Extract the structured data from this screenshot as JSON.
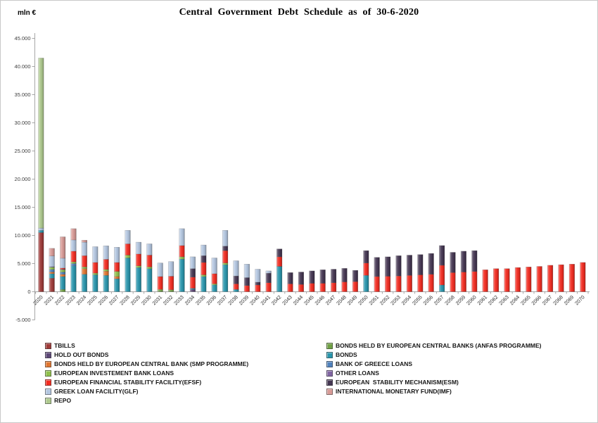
{
  "window": {
    "title": "Central Government Debt Schedule as of 30-6-2020",
    "unit_label": "mln €"
  },
  "chart_data": {
    "type": "bar",
    "stacked": true,
    "title": "Central Government Debt Schedule as of 30-6-2020",
    "ylabel": "mln €",
    "xlabel": "",
    "ylim": [
      -5000,
      45000
    ],
    "y_tick_step": 5000,
    "y_tick_values": [
      45000,
      40000,
      35000,
      30000,
      25000,
      20000,
      15000,
      10000,
      5000,
      0,
      -5000
    ],
    "y_tick_labels": [
      "45.000",
      "40.000",
      "35.000",
      "30.000",
      "25.000",
      "20.000",
      "15.000",
      "10.000",
      "5.000",
      "0",
      "-5.000"
    ],
    "grid": false,
    "x_tick_rotation": 45,
    "legend_position": "bottom-left",
    "categories": [
      2020,
      2021,
      2022,
      2023,
      2024,
      2025,
      2026,
      2027,
      2028,
      2029,
      2030,
      2031,
      2032,
      2033,
      2034,
      2035,
      2036,
      2037,
      2038,
      2039,
      2040,
      2041,
      2042,
      2043,
      2044,
      2045,
      2046,
      2047,
      2048,
      2049,
      2050,
      2051,
      2052,
      2053,
      2054,
      2055,
      2056,
      2057,
      2058,
      2059,
      2060,
      2061,
      2062,
      2063,
      2064,
      2065,
      2066,
      2067,
      2068,
      2069,
      2070
    ],
    "series": [
      {
        "key": "tbills",
        "name": "TBILLS",
        "color": "#9E3A38",
        "values": [
          10500,
          2400,
          0,
          0,
          0,
          0,
          0,
          0,
          0,
          0,
          0,
          0,
          0,
          0,
          0,
          0,
          0,
          0,
          0,
          0,
          0,
          0,
          0,
          0,
          0,
          0,
          0,
          0,
          0,
          0,
          0,
          0,
          0,
          0,
          0,
          0,
          0,
          0,
          0,
          0,
          0,
          0,
          0,
          0,
          0,
          0,
          0,
          0,
          0,
          0,
          0
        ]
      },
      {
        "key": "anfas",
        "name": "BONDS HELD BY EUROPEAN CENTRAL BANKS (ANFAS PROGRAMME)",
        "color": "#70A144",
        "values": [
          0,
          0,
          400,
          0,
          0,
          0,
          0,
          0,
          0,
          0,
          0,
          200,
          200,
          0,
          0,
          0,
          0,
          0,
          0,
          0,
          0,
          0,
          0,
          0,
          0,
          0,
          0,
          0,
          0,
          0,
          0,
          0,
          0,
          0,
          0,
          0,
          0,
          0,
          0,
          0,
          0,
          0,
          0,
          0,
          0,
          0,
          0,
          0,
          0,
          0,
          0
        ]
      },
      {
        "key": "holdout",
        "name": "HOLD OUT BONDS",
        "color": "#5C4776",
        "values": [
          0,
          0,
          0,
          0,
          0,
          0,
          0,
          0,
          0,
          0,
          0,
          0,
          0,
          0,
          400,
          0,
          0,
          0,
          0,
          0,
          0,
          0,
          0,
          0,
          0,
          0,
          0,
          0,
          0,
          0,
          0,
          0,
          0,
          0,
          0,
          0,
          0,
          0,
          0,
          0,
          0,
          0,
          0,
          0,
          0,
          0,
          0,
          0,
          0,
          0,
          0
        ]
      },
      {
        "key": "bonds",
        "name": "BONDS",
        "color": "#2895AC",
        "values": [
          400,
          800,
          2300,
          4600,
          3100,
          3000,
          2900,
          2300,
          6000,
          4300,
          4100,
          0,
          0,
          5800,
          200,
          2700,
          1200,
          4800,
          400,
          0,
          0,
          0,
          4500,
          0,
          0,
          0,
          0,
          0,
          0,
          0,
          2900,
          0,
          0,
          0,
          0,
          0,
          0,
          1200,
          0,
          0,
          0,
          0,
          0,
          0,
          0,
          0,
          0,
          0,
          0,
          0,
          0
        ]
      },
      {
        "key": "smp",
        "name": "BONDS HELD BY EUROPEAN CENTRAL BANK (SMP PROGRAMME)",
        "color": "#E0752F",
        "values": [
          0,
          300,
          400,
          0,
          1000,
          0,
          750,
          400,
          0,
          0,
          0,
          0,
          0,
          0,
          0,
          0,
          0,
          0,
          0,
          0,
          0,
          0,
          0,
          0,
          0,
          0,
          0,
          0,
          0,
          0,
          0,
          0,
          0,
          0,
          0,
          0,
          0,
          0,
          0,
          0,
          0,
          0,
          0,
          0,
          0,
          0,
          0,
          0,
          0,
          0,
          0
        ]
      },
      {
        "key": "bog",
        "name": "BANK OF GREECE LOANS",
        "color": "#4F81BD",
        "values": [
          0,
          450,
          400,
          400,
          0,
          0,
          0,
          0,
          0,
          0,
          0,
          0,
          0,
          0,
          0,
          0,
          0,
          0,
          0,
          0,
          0,
          0,
          0,
          0,
          0,
          0,
          0,
          0,
          0,
          0,
          0,
          0,
          0,
          0,
          0,
          0,
          0,
          0,
          0,
          0,
          0,
          0,
          0,
          0,
          0,
          0,
          0,
          0,
          0,
          0,
          0
        ]
      },
      {
        "key": "eib",
        "name": "EUROPEAN INVESTEMENT BANK LOANS",
        "color": "#8FC04C",
        "values": [
          0,
          400,
          400,
          300,
          300,
          300,
          300,
          900,
          500,
          300,
          300,
          200,
          150,
          400,
          0,
          300,
          200,
          300,
          0,
          0,
          0,
          0,
          0,
          0,
          0,
          0,
          0,
          0,
          0,
          0,
          0,
          0,
          0,
          0,
          0,
          0,
          0,
          0,
          0,
          0,
          0,
          0,
          0,
          0,
          0,
          0,
          0,
          0,
          0,
          0,
          0
        ]
      },
      {
        "key": "other",
        "name": "OTHER LOANS",
        "color": "#8064A2",
        "values": [
          0,
          100,
          100,
          0,
          0,
          0,
          0,
          0,
          0,
          0,
          0,
          0,
          0,
          0,
          0,
          0,
          0,
          0,
          0,
          0,
          0,
          0,
          0,
          0,
          0,
          0,
          0,
          0,
          0,
          0,
          0,
          0,
          0,
          0,
          0,
          0,
          0,
          0,
          0,
          0,
          0,
          0,
          0,
          0,
          0,
          0,
          0,
          0,
          0,
          0,
          0
        ]
      },
      {
        "key": "efsf",
        "name": "EUROPEAN FINANCIAL STABILITY FACILITY(EFSF)",
        "color": "#F32B20",
        "values": [
          0,
          0,
          200,
          1900,
          2000,
          1900,
          1800,
          1600,
          2000,
          2100,
          2100,
          2300,
          2400,
          2000,
          2000,
          2200,
          1800,
          2200,
          1000,
          1100,
          1200,
          1600,
          1700,
          1400,
          1300,
          1500,
          1500,
          1600,
          1750,
          1800,
          2200,
          2700,
          2750,
          2800,
          2900,
          3000,
          3100,
          3500,
          3400,
          3500,
          3600,
          3900,
          4100,
          4100,
          4300,
          4400,
          4500,
          4700,
          4800,
          4900,
          5200
        ]
      },
      {
        "key": "esm",
        "name": "EUROPEAN  STABILITY MECHANISM(ESM)",
        "color": "#443652",
        "values": [
          0,
          0,
          0,
          0,
          0,
          0,
          0,
          0,
          0,
          0,
          0,
          0,
          0,
          0,
          1500,
          1200,
          0,
          800,
          1400,
          1400,
          500,
          1700,
          1400,
          2000,
          2200,
          2200,
          2400,
          2400,
          2400,
          2000,
          2200,
          3400,
          3450,
          3600,
          3600,
          3600,
          3700,
          3500,
          3600,
          3700,
          3700,
          0,
          0,
          0,
          0,
          0,
          0,
          0,
          0,
          0,
          0
        ]
      },
      {
        "key": "glf",
        "name": "GREEK LOAN FACILITY(GLF)",
        "color": "#B3C6E0",
        "values": [
          400,
          1900,
          1750,
          2000,
          2400,
          2800,
          2400,
          2700,
          2400,
          2100,
          2000,
          2400,
          2600,
          3000,
          2100,
          1900,
          2800,
          2800,
          2700,
          2400,
          2300,
          400,
          0,
          0,
          0,
          0,
          0,
          0,
          0,
          0,
          0,
          0,
          0,
          0,
          0,
          0,
          0,
          0,
          0,
          0,
          0,
          0,
          0,
          0,
          0,
          0,
          0,
          0,
          0,
          0,
          0
        ]
      },
      {
        "key": "imf",
        "name": "INTERNATIONAL MONETARY FUND(IMF)",
        "color": "#D89A96",
        "values": [
          0,
          1350,
          3800,
          2000,
          350,
          0,
          0,
          0,
          0,
          0,
          0,
          0,
          0,
          0,
          0,
          0,
          0,
          0,
          0,
          0,
          0,
          0,
          0,
          0,
          0,
          0,
          0,
          0,
          0,
          0,
          0,
          0,
          0,
          0,
          0,
          0,
          0,
          0,
          0,
          0,
          0,
          0,
          0,
          0,
          0,
          0,
          0,
          0,
          0,
          0,
          0
        ]
      },
      {
        "key": "repo",
        "name": "REPO",
        "color": "#AEC98E",
        "values": [
          30200,
          0,
          0,
          0,
          0,
          0,
          0,
          0,
          0,
          0,
          0,
          0,
          0,
          0,
          0,
          0,
          0,
          0,
          0,
          0,
          0,
          0,
          0,
          0,
          0,
          0,
          0,
          0,
          0,
          0,
          0,
          0,
          0,
          0,
          0,
          0,
          0,
          0,
          0,
          0,
          0,
          0,
          0,
          0,
          0,
          0,
          0,
          0,
          0,
          0,
          0
        ]
      }
    ],
    "legend_columns": [
      [
        "tbills",
        "holdout",
        "smp",
        "eib",
        "efsf",
        "glf",
        "repo"
      ],
      [
        "anfas",
        "bonds",
        "bog",
        "other",
        "esm",
        "imf"
      ]
    ]
  }
}
